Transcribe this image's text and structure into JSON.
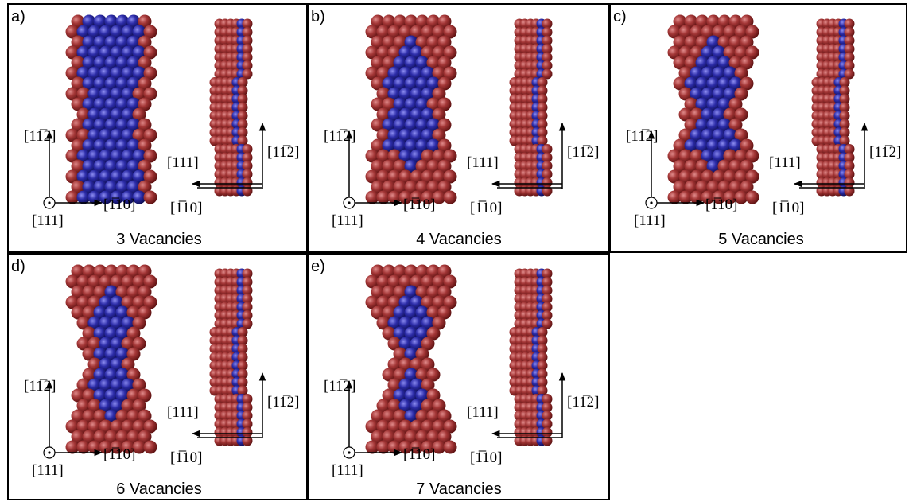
{
  "panels": [
    {
      "label": "a)",
      "caption": "3 Vacancies",
      "front": {
        "up": "[11̅2]",
        "out": "[111]",
        "right": "[1̅10]"
      },
      "side": {
        "left": "[111]",
        "up": "[11̅2]",
        "down": "[1̅10]"
      }
    },
    {
      "label": "b)",
      "caption": "4 Vacancies",
      "front": {
        "up": "[11̅2]",
        "out": "[111]",
        "right": "[1̅10]"
      },
      "side": {
        "left": "[111]",
        "up": "[11̅2]",
        "down": "[1̅10]"
      }
    },
    {
      "label": "c)",
      "caption": "5 Vacancies",
      "front": {
        "up": "[11̅2]",
        "out": "[111]",
        "right": "[1̅10]"
      },
      "side": {
        "left": "[111]",
        "up": "[11̅2]",
        "down": "[1̅10]"
      }
    },
    {
      "label": "d)",
      "caption": "6 Vacancies",
      "front": {
        "up": "[11̅2]",
        "out": "[111]",
        "right": "[1̅10]"
      },
      "side": {
        "left": "[111]",
        "up": "[11̅2]",
        "down": "[1̅10]"
      }
    },
    {
      "label": "e)",
      "caption": "7 Vacancies",
      "front": {
        "up": "[11̅2]",
        "out": "[111]",
        "right": "[1̅10]"
      },
      "side": {
        "left": "[111]",
        "up": "[11̅2]",
        "down": "[1̅10]"
      }
    }
  ]
}
